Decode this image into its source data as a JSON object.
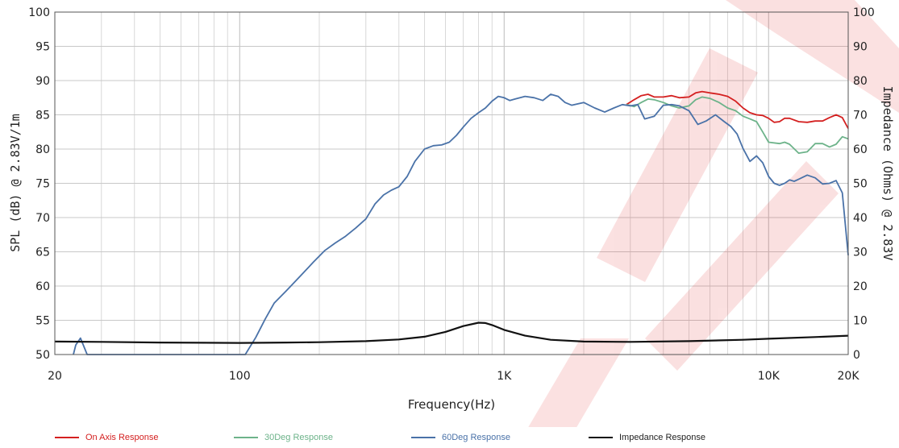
{
  "chart_data": {
    "type": "line",
    "xlabel": "Frequency(Hz)",
    "ylabel": "SPL (dB) @ 2.83V/1m",
    "y2label": "Impedance (Ohms) @ 2.83V",
    "x_scale": "log",
    "xlim": [
      20,
      20000
    ],
    "ylim": [
      50,
      100
    ],
    "y2lim": [
      0,
      100
    ],
    "x_ticks": [
      20,
      100,
      1000,
      10000,
      20000
    ],
    "x_tick_labels": [
      "20",
      "100",
      "1K",
      "10K",
      "20K"
    ],
    "y_ticks": [
      50,
      55,
      60,
      65,
      70,
      75,
      80,
      85,
      90,
      95,
      100
    ],
    "y_tick_labels": [
      "50",
      "55",
      "60",
      "65",
      "70",
      "75",
      "80",
      "85",
      "90",
      "95",
      "100"
    ],
    "y2_ticks": [
      0,
      10,
      20,
      30,
      40,
      50,
      60,
      70,
      80,
      90,
      100
    ],
    "y2_tick_labels": [
      "0",
      "10",
      "20",
      "30",
      "40",
      "50",
      "60",
      "70",
      "80",
      "90",
      "100"
    ],
    "grid": true,
    "legend_position": "bottom",
    "series": [
      {
        "name": "On Axis Response",
        "color": "#d42020",
        "axis": "left",
        "x": [
          2900,
          3100,
          3300,
          3500,
          3700,
          4000,
          4300,
          4600,
          5000,
          5300,
          5600,
          6000,
          6500,
          7000,
          7500,
          8000,
          8500,
          9000,
          9500,
          10000,
          10500,
          11000,
          11500,
          12000,
          13000,
          14000,
          15000,
          16000,
          17000,
          18000,
          19000,
          20000
        ],
        "y": [
          86.5,
          87.2,
          87.8,
          88.0,
          87.6,
          87.6,
          87.8,
          87.5,
          87.6,
          88.2,
          88.4,
          88.2,
          88.0,
          87.7,
          87.0,
          86.0,
          85.3,
          85.0,
          84.9,
          84.5,
          83.9,
          84.0,
          84.5,
          84.5,
          84.0,
          83.9,
          84.1,
          84.1,
          84.6,
          85.0,
          84.6,
          83.0
        ]
      },
      {
        "name": "30Deg Response",
        "color": "#6db38a",
        "axis": "left",
        "x": [
          2900,
          3100,
          3300,
          3500,
          3700,
          4000,
          4300,
          4600,
          5000,
          5300,
          5600,
          6000,
          6500,
          7000,
          7500,
          8000,
          8500,
          9000,
          9500,
          10000,
          11000,
          11500,
          12000,
          13000,
          14000,
          15000,
          16000,
          17000,
          18000,
          19000,
          20000
        ],
        "y": [
          86.5,
          86.2,
          86.8,
          87.3,
          87.2,
          86.8,
          86.3,
          86.0,
          86.3,
          87.2,
          87.6,
          87.4,
          86.8,
          86.0,
          85.6,
          84.8,
          84.4,
          84.0,
          82.5,
          81.0,
          80.8,
          81.0,
          80.7,
          79.4,
          79.6,
          80.8,
          80.8,
          80.3,
          80.7,
          81.8,
          81.5
        ]
      },
      {
        "name": "60Deg Response",
        "color": "#4a72a8",
        "axis": "left",
        "x": [
          23.5,
          24,
          25,
          26.5,
          27,
          105,
          115,
          125,
          135,
          150,
          170,
          190,
          210,
          230,
          250,
          275,
          300,
          325,
          350,
          375,
          400,
          430,
          460,
          500,
          540,
          580,
          620,
          660,
          700,
          750,
          800,
          850,
          900,
          950,
          1000,
          1050,
          1100,
          1200,
          1300,
          1400,
          1500,
          1600,
          1700,
          1800,
          2000,
          2200,
          2400,
          2600,
          2800,
          3000,
          3200,
          3400,
          3700,
          4000,
          4300,
          4600,
          5000,
          5400,
          5800,
          6300,
          6800,
          7200,
          7600,
          8000,
          8500,
          9000,
          9500,
          10000,
          10500,
          11000,
          11500,
          12000,
          12500,
          13000,
          14000,
          15000,
          16000,
          17000,
          18000,
          19000,
          20000
        ],
        "y": [
          50,
          51.4,
          52.4,
          50,
          50,
          50,
          52.5,
          55.2,
          57.5,
          59.3,
          61.5,
          63.5,
          65.2,
          66.3,
          67.2,
          68.5,
          69.8,
          72.0,
          73.3,
          74.0,
          74.5,
          76.0,
          78.2,
          80.0,
          80.5,
          80.6,
          81.0,
          82.0,
          83.2,
          84.5,
          85.3,
          86.0,
          87.0,
          87.7,
          87.5,
          87.1,
          87.3,
          87.7,
          87.5,
          87.1,
          88.0,
          87.7,
          86.8,
          86.4,
          86.8,
          86.0,
          85.4,
          86.0,
          86.5,
          86.3,
          86.5,
          84.4,
          84.8,
          86.4,
          86.5,
          86.3,
          85.6,
          83.6,
          84.1,
          85.0,
          84.0,
          83.3,
          82.2,
          80.1,
          78.2,
          79.0,
          78.0,
          76.0,
          75.0,
          74.7,
          75.0,
          75.5,
          75.3,
          75.6,
          76.2,
          75.8,
          74.9,
          75.0,
          75.4,
          73.6,
          64.5
        ]
      },
      {
        "name": "Impedance Response",
        "color": "#111111",
        "axis": "right",
        "x": [
          20,
          30,
          50,
          100,
          150,
          200,
          300,
          400,
          500,
          600,
          700,
          800,
          850,
          900,
          1000,
          1200,
          1500,
          2000,
          3000,
          5000,
          8000,
          10000,
          15000,
          20000
        ],
        "y": [
          3.8,
          3.7,
          3.5,
          3.4,
          3.5,
          3.6,
          3.9,
          4.4,
          5.2,
          6.6,
          8.3,
          9.3,
          9.2,
          8.6,
          7.2,
          5.5,
          4.3,
          3.8,
          3.7,
          3.9,
          4.3,
          4.6,
          5.1,
          5.5
        ]
      }
    ]
  },
  "watermark": {
    "color": "#e01818"
  }
}
